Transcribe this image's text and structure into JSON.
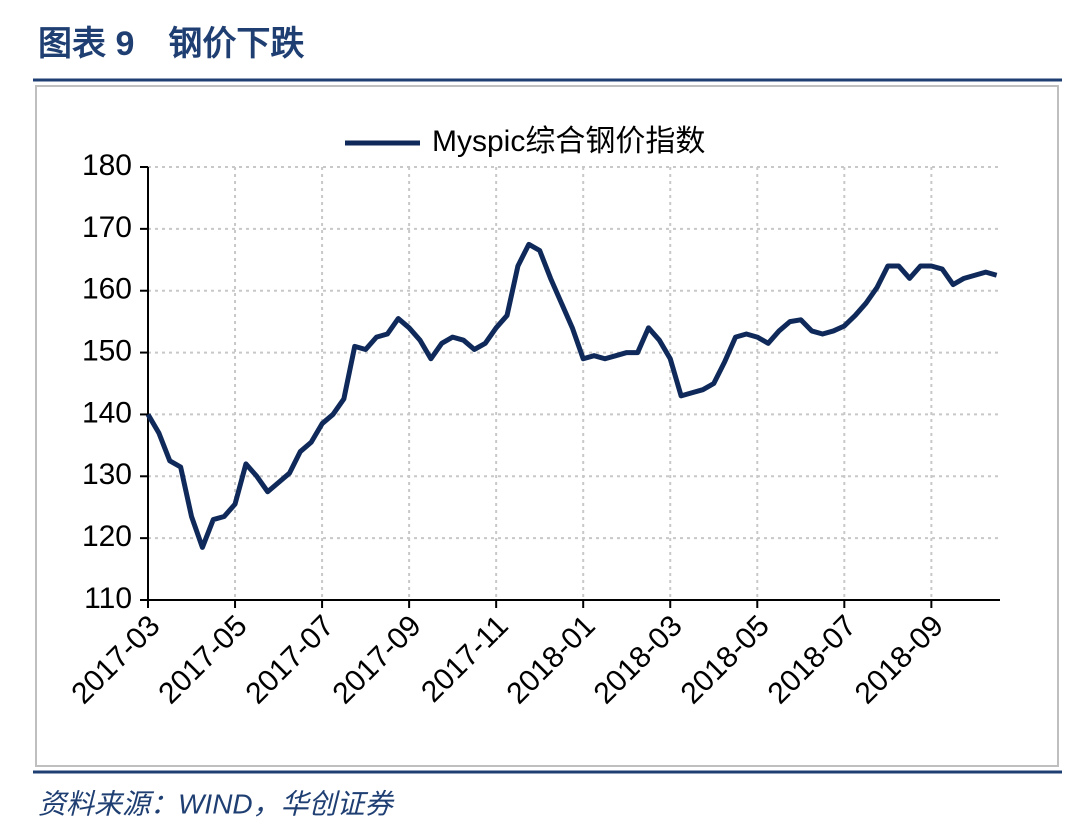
{
  "chart_data": {
    "type": "line",
    "title": "图表 9　钢价下跌",
    "source": "资料来源：WIND，华创证券",
    "categories": [
      "2017-03",
      null,
      null,
      null,
      null,
      null,
      null,
      null,
      "2017-05",
      null,
      null,
      null,
      null,
      null,
      null,
      null,
      "2017-07",
      null,
      null,
      null,
      null,
      null,
      null,
      null,
      "2017-09",
      null,
      null,
      null,
      null,
      null,
      null,
      null,
      "2017-11",
      null,
      null,
      null,
      null,
      null,
      null,
      null,
      "2018-01",
      null,
      null,
      null,
      null,
      null,
      null,
      null,
      "2018-03",
      null,
      null,
      null,
      null,
      null,
      null,
      null,
      "2018-05",
      null,
      null,
      null,
      null,
      null,
      null,
      null,
      "2018-07",
      null,
      null,
      null,
      null,
      null,
      null,
      null,
      "2018-09",
      null,
      null,
      null,
      null,
      null,
      null
    ],
    "series": [
      {
        "name": "Myspic综合钢价指数",
        "color": "#0f2a5a",
        "values": [
          140,
          137,
          132.5,
          131.5,
          123.5,
          118.5,
          123,
          123.5,
          125.5,
          132,
          130,
          127.5,
          129,
          130.5,
          134,
          135.5,
          138.5,
          140,
          142.5,
          151,
          150.5,
          152.5,
          153,
          155.5,
          154,
          152,
          149,
          151.5,
          152.5,
          152,
          150.5,
          151.5,
          154,
          156,
          164,
          167.5,
          166.5,
          162,
          158,
          154,
          149,
          149.5,
          149,
          149.5,
          150,
          150,
          154,
          152,
          149,
          143,
          143.5,
          144,
          145,
          148.5,
          152.5,
          153,
          152.5,
          151.5,
          153.5,
          155,
          155.3,
          153.5,
          153,
          153.5,
          154.3,
          156,
          158,
          160.5,
          164,
          164,
          162,
          164,
          164,
          163.5,
          161,
          162,
          162.5,
          163,
          162.5
        ]
      }
    ],
    "ylim": [
      110,
      180
    ],
    "yticks": [
      110,
      120,
      130,
      140,
      150,
      160,
      170,
      180
    ],
    "grid": true,
    "legend": "top"
  }
}
